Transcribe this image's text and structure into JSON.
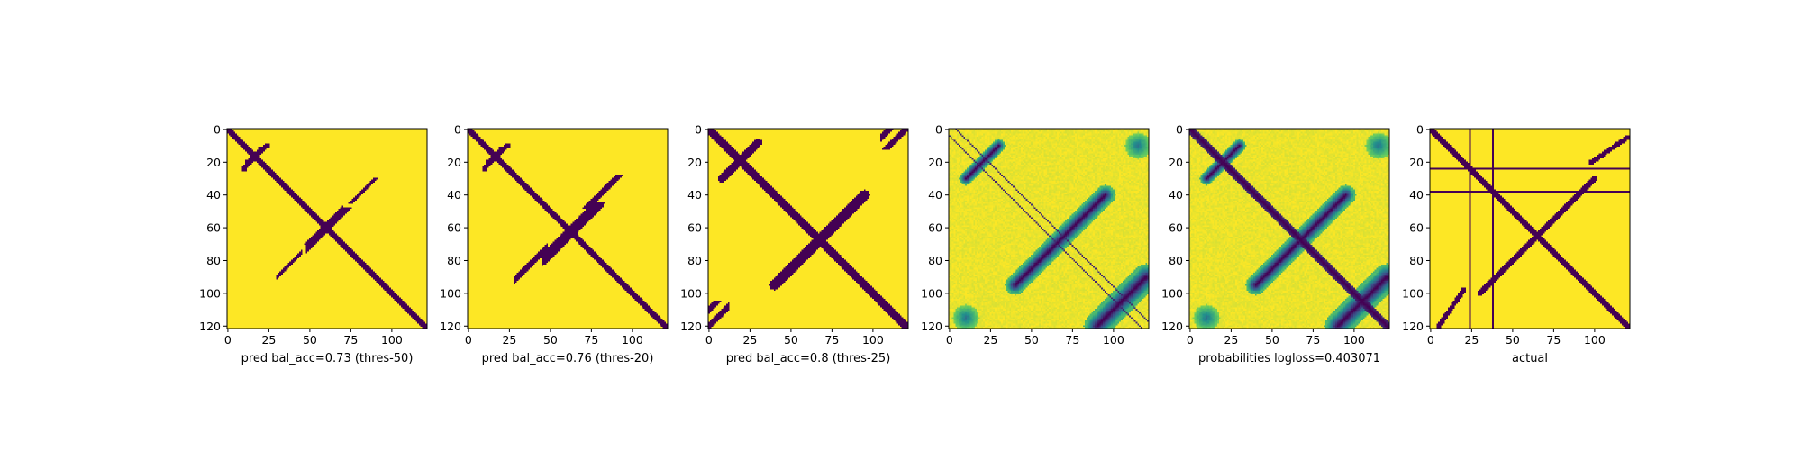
{
  "chart_data": [
    {
      "type": "heatmap",
      "title": "",
      "xlabel": "pred bal_acc=0.73 (thres-50)",
      "ylabel": "",
      "xticks": [
        "0",
        "25",
        "50",
        "75",
        "100"
      ],
      "yticks": [
        "0",
        "20",
        "40",
        "60",
        "80",
        "100",
        "120"
      ],
      "xlim": [
        0,
        122
      ],
      "ylim": [
        122,
        0
      ],
      "matrix_size": 122,
      "colormap": "viridis",
      "values": "binary",
      "features": [
        {
          "kind": "diagonal",
          "offset": 0,
          "width": 2
        },
        {
          "kind": "band",
          "from": [
            10,
            24
          ],
          "to": [
            20,
            12
          ],
          "width": 1.5
        },
        {
          "kind": "band",
          "from": [
            45,
            75
          ],
          "to": [
            75,
            45
          ],
          "width": 2.5,
          "span": [
            48,
            70
          ]
        },
        {
          "kind": "band",
          "from": [
            95,
            25
          ],
          "to": [
            25,
            95
          ],
          "width": 1,
          "span": [
            30,
            45
          ]
        }
      ]
    },
    {
      "type": "heatmap",
      "title": "",
      "xlabel": "pred bal_acc=0.76 (thres-20)",
      "ylabel": "",
      "xticks": [
        "0",
        "25",
        "50",
        "75",
        "100"
      ],
      "yticks": [
        "0",
        "20",
        "40",
        "60",
        "80",
        "100",
        "120"
      ],
      "xlim": [
        0,
        122
      ],
      "ylim": [
        122,
        0
      ],
      "matrix_size": 122,
      "colormap": "viridis",
      "values": "binary",
      "features": [
        {
          "kind": "diagonal",
          "offset": 0,
          "width": 2.5
        },
        {
          "kind": "band",
          "from": [
            10,
            24
          ],
          "to": [
            20,
            12
          ],
          "width": 1.5
        },
        {
          "kind": "band",
          "from": [
            45,
            80
          ],
          "to": [
            80,
            45
          ],
          "width": 3,
          "span": [
            45,
            75
          ]
        },
        {
          "kind": "band",
          "from": [
            95,
            25
          ],
          "to": [
            25,
            95
          ],
          "width": 1.5,
          "span": [
            28,
            48
          ]
        }
      ]
    },
    {
      "type": "heatmap",
      "title": "",
      "xlabel": "pred bal_acc=0.8 (thres-25)",
      "ylabel": "",
      "xticks": [
        "0",
        "25",
        "50",
        "75",
        "100"
      ],
      "yticks": [
        "0",
        "20",
        "40",
        "60",
        "80",
        "100",
        "120"
      ],
      "xlim": [
        0,
        122
      ],
      "ylim": [
        122,
        0
      ],
      "matrix_size": 122,
      "colormap": "viridis",
      "values": "binary",
      "features": [
        {
          "kind": "diagonal",
          "offset": 0,
          "width": 3
        },
        {
          "kind": "band",
          "from": [
            10,
            28
          ],
          "to": [
            30,
            8
          ],
          "width": 2.5
        },
        {
          "kind": "band",
          "from": [
            40,
            95
          ],
          "to": [
            95,
            40
          ],
          "width": 3,
          "span": [
            35,
            80
          ]
        },
        {
          "kind": "band",
          "from": [
            110,
            0
          ],
          "to": [
            0,
            110
          ],
          "width": 2,
          "span": [
            105,
            115
          ]
        },
        {
          "kind": "band",
          "from": [
            0,
            120
          ],
          "to": [
            120,
            0
          ],
          "width": 2,
          "span": [
            0,
            12
          ]
        }
      ]
    },
    {
      "type": "heatmap",
      "title": "",
      "xlabel": "",
      "ylabel": "",
      "xticks": [
        "0",
        "25",
        "50",
        "75",
        "100"
      ],
      "yticks": [
        "0",
        "20",
        "40",
        "60",
        "80",
        "100",
        "120"
      ],
      "xlim": [
        0,
        122
      ],
      "ylim": [
        122,
        0
      ],
      "matrix_size": 122,
      "colormap": "viridis",
      "values": "continuous",
      "features": [
        {
          "kind": "offdiagonal-lines",
          "offsets": [
            -4,
            4
          ]
        },
        {
          "kind": "band",
          "from": [
            10,
            30
          ],
          "to": [
            30,
            10
          ],
          "width": 4
        },
        {
          "kind": "band",
          "from": [
            40,
            95
          ],
          "to": [
            95,
            40
          ],
          "width": 6
        },
        {
          "kind": "band",
          "from": [
            90,
            120
          ],
          "to": [
            120,
            90
          ],
          "width": 8
        },
        {
          "kind": "blob",
          "center": [
            10,
            115
          ],
          "radius": 8
        }
      ]
    },
    {
      "type": "heatmap",
      "title": "",
      "xlabel": "probabilities logloss=0.403071",
      "ylabel": "",
      "xticks": [
        "0",
        "25",
        "50",
        "75",
        "100"
      ],
      "yticks": [
        "0",
        "20",
        "40",
        "60",
        "80",
        "100",
        "120"
      ],
      "xlim": [
        0,
        122
      ],
      "ylim": [
        122,
        0
      ],
      "matrix_size": 122,
      "colormap": "viridis",
      "values": "continuous",
      "features": [
        {
          "kind": "diagonal",
          "offset": 0,
          "width": 3
        },
        {
          "kind": "band",
          "from": [
            10,
            30
          ],
          "to": [
            30,
            10
          ],
          "width": 4
        },
        {
          "kind": "band",
          "from": [
            40,
            95
          ],
          "to": [
            95,
            40
          ],
          "width": 6
        },
        {
          "kind": "band",
          "from": [
            90,
            120
          ],
          "to": [
            120,
            90
          ],
          "width": 8
        },
        {
          "kind": "blob",
          "center": [
            10,
            115
          ],
          "radius": 8
        }
      ]
    },
    {
      "type": "heatmap",
      "title": "",
      "xlabel": "actual",
      "ylabel": "",
      "xticks": [
        "0",
        "25",
        "50",
        "75",
        "100"
      ],
      "yticks": [
        "0",
        "20",
        "40",
        "60",
        "80",
        "100",
        "120"
      ],
      "xlim": [
        0,
        122
      ],
      "ylim": [
        122,
        0
      ],
      "matrix_size": 122,
      "colormap": "viridis",
      "values": "binary",
      "features": [
        {
          "kind": "diagonal",
          "offset": 0,
          "width": 2
        },
        {
          "kind": "row",
          "index": 24
        },
        {
          "kind": "row",
          "index": 38
        },
        {
          "kind": "col",
          "index": 24
        },
        {
          "kind": "col",
          "index": 38
        },
        {
          "kind": "band",
          "from": [
            30,
            100
          ],
          "to": [
            100,
            30
          ],
          "width": 1.5
        },
        {
          "kind": "band",
          "from": [
            5,
            120
          ],
          "to": [
            20,
            98
          ],
          "width": 1.5
        }
      ]
    }
  ],
  "colors": {
    "low": "#440154",
    "high": "#fde725"
  }
}
